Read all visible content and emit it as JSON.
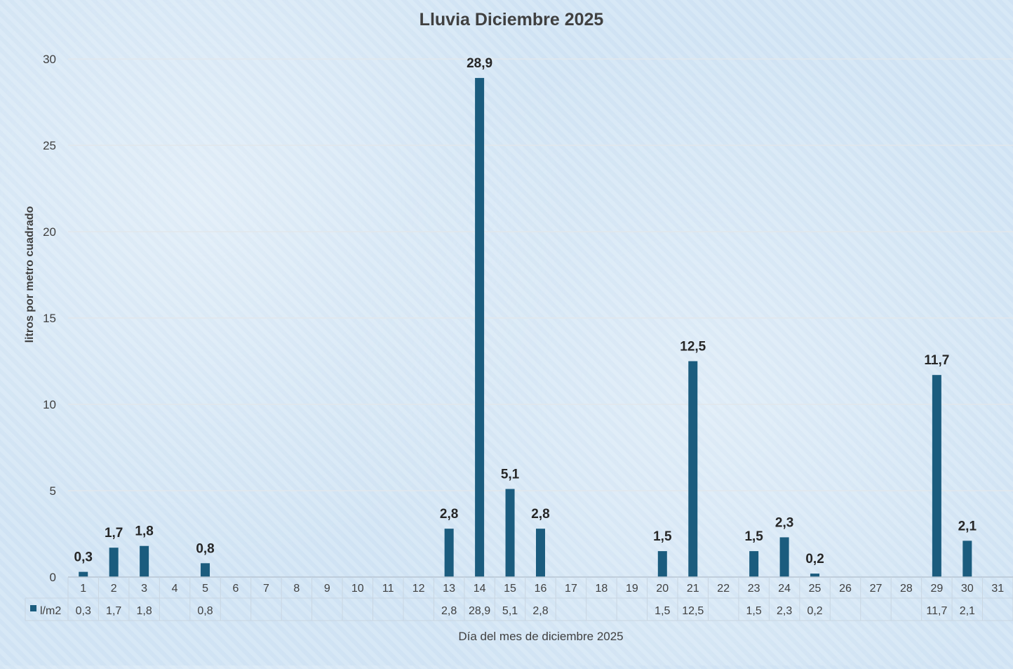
{
  "chart_data": {
    "type": "bar",
    "title": "Lluvia Diciembre 2025",
    "xlabel": "Día del mes de diciembre 2025",
    "ylabel": "litros por metro cuadrado",
    "ylim": [
      0,
      30
    ],
    "yticks": [
      0,
      5,
      10,
      15,
      20,
      25,
      30
    ],
    "grid": true,
    "legend": "data-table",
    "bar_color": "#1b5c7e",
    "categories": [
      "1",
      "2",
      "3",
      "4",
      "5",
      "6",
      "7",
      "8",
      "9",
      "10",
      "11",
      "12",
      "13",
      "14",
      "15",
      "16",
      "17",
      "18",
      "19",
      "20",
      "21",
      "22",
      "23",
      "24",
      "25",
      "26",
      "27",
      "28",
      "29",
      "30",
      "31"
    ],
    "series": [
      {
        "name": "l/m2",
        "values": [
          0.3,
          1.7,
          1.8,
          null,
          0.8,
          null,
          null,
          null,
          null,
          null,
          null,
          null,
          2.8,
          28.9,
          5.1,
          2.8,
          null,
          null,
          null,
          1.5,
          12.5,
          null,
          1.5,
          2.3,
          0.2,
          null,
          null,
          null,
          11.7,
          2.1,
          null
        ],
        "labels": [
          "0,3",
          "1,7",
          "1,8",
          "",
          "0,8",
          "",
          "",
          "",
          "",
          "",
          "",
          "",
          "2,8",
          "28,9",
          "5,1",
          "2,8",
          "",
          "",
          "",
          "1,5",
          "12,5",
          "",
          "1,5",
          "2,3",
          "0,2",
          "",
          "",
          "",
          "11,7",
          "2,1",
          ""
        ]
      }
    ]
  }
}
